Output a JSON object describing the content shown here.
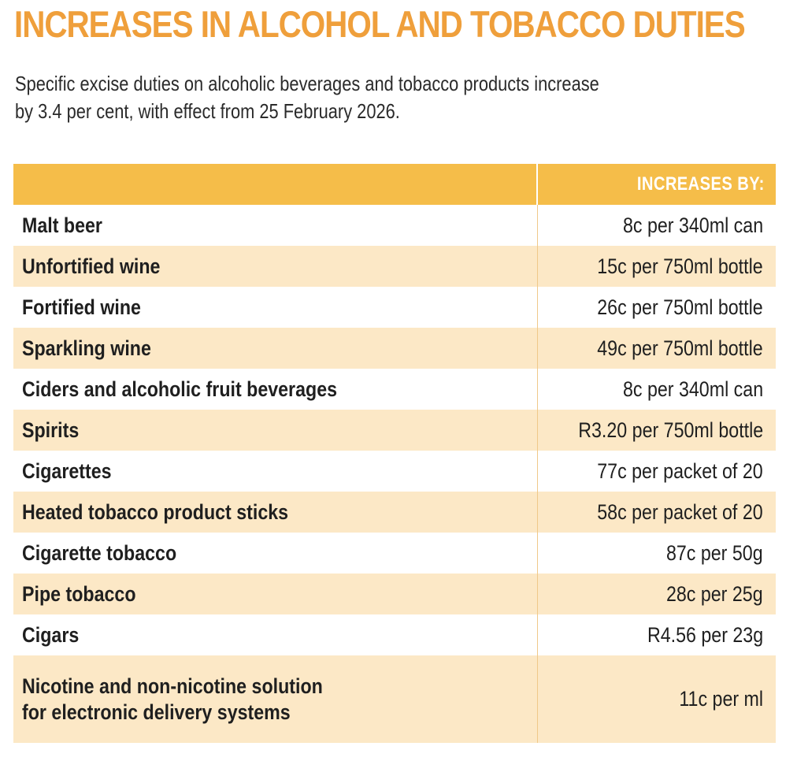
{
  "title": "INCREASES IN ALCOHOL AND TOBACCO DUTIES",
  "intro_line1": "Specific excise duties on alcoholic beverages and tobacco products increase",
  "intro_line2": "by 3.4 per cent, with effect from 25 February 2026.",
  "table": {
    "header_product": "",
    "header_increase": "INCREASES BY:",
    "rows": [
      {
        "product": "Malt beer",
        "increase": "8c per 340ml can"
      },
      {
        "product": "Unfortified wine",
        "increase": "15c per 750ml bottle"
      },
      {
        "product": "Fortified wine",
        "increase": "26c per 750ml bottle"
      },
      {
        "product": "Sparkling wine",
        "increase": "49c per 750ml bottle"
      },
      {
        "product": "Ciders and alcoholic fruit beverages",
        "increase": "8c per 340ml can"
      },
      {
        "product": "Spirits",
        "increase": "R3.20 per 750ml bottle"
      },
      {
        "product": "Cigarettes",
        "increase": "77c per packet of 20"
      },
      {
        "product": "Heated tobacco product sticks",
        "increase": "58c per packet of 20"
      },
      {
        "product": "Cigarette tobacco",
        "increase": "87c per 50g"
      },
      {
        "product": "Pipe tobacco",
        "increase": "28c per 25g"
      },
      {
        "product": "Cigars",
        "increase": "R4.56 per 23g"
      }
    ],
    "last_row": {
      "product_line1": "Nicotine and non-nicotine solution",
      "product_line2": "for electronic delivery systems",
      "increase": "11c per ml"
    }
  },
  "colors": {
    "title": "#ef9f3b",
    "header_band": "#f5bd49",
    "stripe": "#fce8c6",
    "text": "#1f1f1f"
  }
}
